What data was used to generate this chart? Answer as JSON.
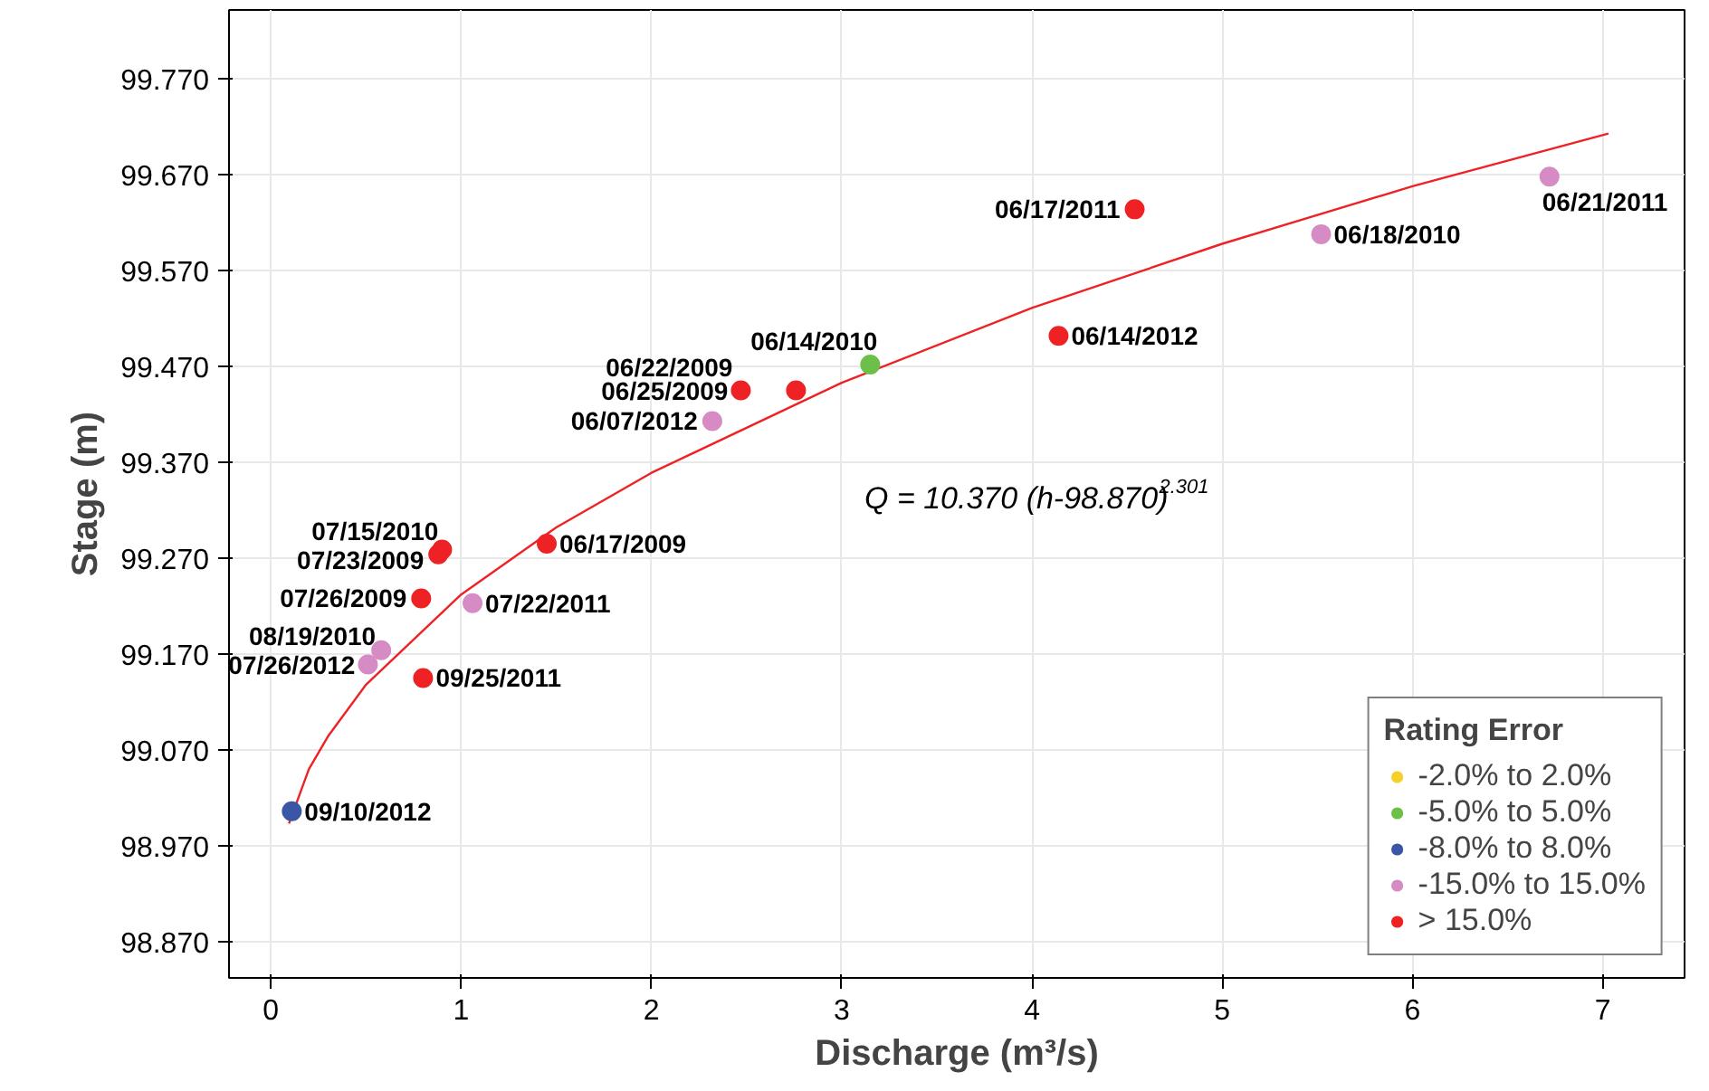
{
  "chart_data": {
    "type": "scatter",
    "xlabel": "Discharge (m³/s)",
    "ylabel": "Stage (m)",
    "legend_title": "Rating Error",
    "legend": "bottom right",
    "grid": true,
    "marker": "circle",
    "xlim": [
      -0.22,
      7.43
    ],
    "ylim": [
      98.832,
      99.842
    ],
    "xticks": [
      0,
      1,
      2,
      3,
      4,
      5,
      6,
      7
    ],
    "yticks": [
      {
        "value": 98.87,
        "label": "98.870"
      },
      {
        "value": 98.97,
        "label": "98.970"
      },
      {
        "value": 99.07,
        "label": "99.070"
      },
      {
        "value": 99.17,
        "label": "99.170"
      },
      {
        "value": 99.27,
        "label": "99.270"
      },
      {
        "value": 99.37,
        "label": "99.370"
      },
      {
        "value": 99.47,
        "label": "99.470"
      },
      {
        "value": 99.57,
        "label": "99.570"
      },
      {
        "value": 99.67,
        "label": "99.670"
      },
      {
        "value": 99.77,
        "label": "99.770"
      }
    ],
    "series": [
      {
        "type": "line",
        "marker": "none",
        "color": "#ee2224",
        "x": [
          0.095,
          0.2,
          0.3,
          0.5,
          1,
          1.5,
          2,
          3,
          4,
          5,
          6,
          7.03
        ],
        "values": [
          98.993,
          99.05,
          99.084,
          99.138,
          99.232,
          99.302,
          99.359,
          99.453,
          99.531,
          99.598,
          99.658,
          99.713
        ]
      },
      {
        "name": "-2.0% to 2.0%",
        "color": "#f5d02a"
      },
      {
        "name": "-5.0% to 5.0%",
        "color": "#6cc04a",
        "x": [
          3.15
        ],
        "values": [
          99.472
        ]
      },
      {
        "name": "-8.0% to 8.0%",
        "color": "#3a56a5",
        "x": [
          0.11
        ],
        "values": [
          99.006
        ]
      },
      {
        "name": "-15.0% to 15.0%",
        "color": "#d68bc4",
        "x": [
          0.51,
          0.58,
          1.06,
          2.32,
          5.52,
          6.72
        ],
        "values": [
          99.159,
          99.174,
          99.223,
          99.413,
          99.608,
          99.668
        ]
      },
      {
        "name": "> 15.0%",
        "color": "#ee2224",
        "x": [
          0.8,
          0.79,
          0.88,
          0.9,
          1.45,
          2.47,
          2.76,
          4.14,
          4.54
        ],
        "values": [
          99.145,
          99.228,
          99.274,
          99.279,
          99.285,
          99.445,
          99.445,
          99.502,
          99.634
        ]
      }
    ],
    "annotations": [
      {
        "text": "09/10/2012",
        "x": 0.11,
        "y": 99.006
      },
      {
        "text": "07/26/2012",
        "x": 0.51,
        "y": 99.159
      },
      {
        "text": "08/19/2010",
        "x": 0.58,
        "y": 99.174
      },
      {
        "text": "09/25/2011",
        "x": 0.8,
        "y": 99.145
      },
      {
        "text": "07/26/2009",
        "x": 0.79,
        "y": 99.228
      },
      {
        "text": "07/23/2009",
        "x": 0.88,
        "y": 99.274
      },
      {
        "text": "07/15/2010",
        "x": 0.9,
        "y": 99.279
      },
      {
        "text": "07/22/2011",
        "x": 1.06,
        "y": 99.223
      },
      {
        "text": "06/17/2009",
        "x": 1.45,
        "y": 99.285
      },
      {
        "text": "06/07/2012",
        "x": 2.32,
        "y": 99.413
      },
      {
        "text": "06/25/2009",
        "x": 2.47,
        "y": 99.445
      },
      {
        "text": "06/22/2009",
        "x": 2.76,
        "y": 99.445
      },
      {
        "text": "06/14/2010",
        "x": 3.15,
        "y": 99.472
      },
      {
        "text": "06/14/2012",
        "x": 4.14,
        "y": 99.502
      },
      {
        "text": "06/17/2011",
        "x": 4.54,
        "y": 99.634
      },
      {
        "text": "06/18/2010",
        "x": 5.52,
        "y": 99.608
      },
      {
        "text": "06/21/2011",
        "x": 6.72,
        "y": 99.668
      },
      "Q = 10.370 (h-98.870)$^{2.301}$"
    ]
  }
}
